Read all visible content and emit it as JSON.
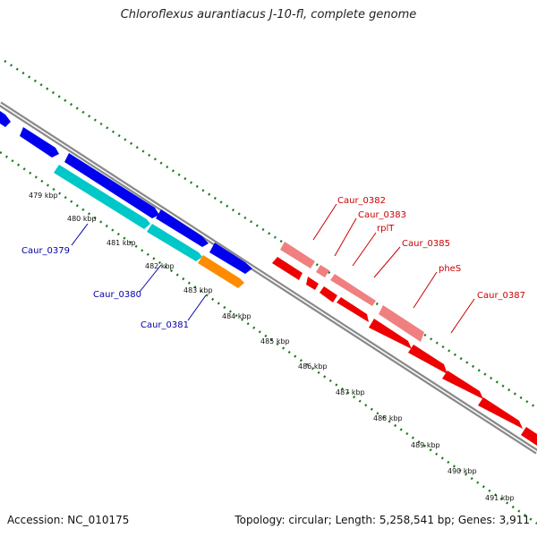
{
  "title": "Chloroflexus aurantiacus J-10-fl, complete genome",
  "footer": {
    "accession": "Accession: NC_010175",
    "summary": "Topology: circular; Length: 5,258,541 bp; Genes: 3,911"
  },
  "colors": {
    "backbone": "#8c8c8c",
    "tick": "#1a7a1a",
    "forward_gene": "#0000ee",
    "forward_gene_alt": "#00c8c8",
    "forward_gene_orange": "#ff8c00",
    "reverse_gene": "#ee0000",
    "reverse_gene_light": "#f08080",
    "label_blue": "#0000aa",
    "label_red": "#cc0000"
  },
  "kbp_labels": [
    "479 kbp",
    "480 kbp",
    "481 kbp",
    "482 kbp",
    "483 kbp",
    "484 kbp",
    "485 kbp",
    "486 kbp",
    "487 kbp",
    "488 kbp",
    "489 kbp",
    "490 kbp",
    "491 kbp"
  ],
  "gene_labels": {
    "forward": [
      "Caur_0379",
      "Caur_0380",
      "Caur_0381"
    ],
    "reverse": [
      "Caur_0382",
      "Caur_0383",
      "rplT",
      "Caur_0385",
      "pheS",
      "Caur_0387"
    ]
  }
}
